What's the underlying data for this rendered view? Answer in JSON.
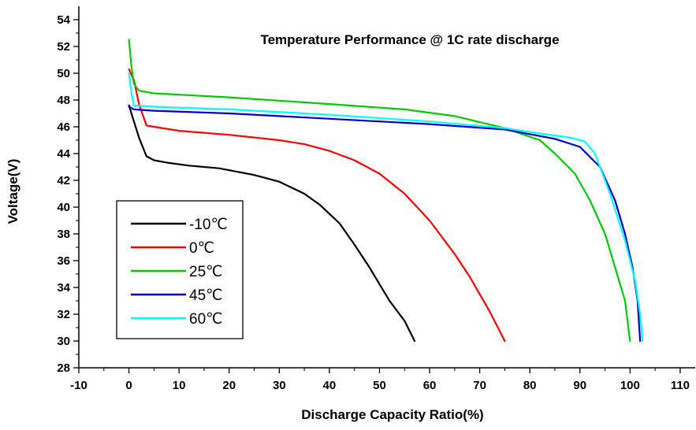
{
  "chart_data": {
    "type": "line",
    "title": "Temperature Performance @ 1C rate discharge",
    "xlabel": "Discharge Capacity Ratio(%)",
    "ylabel": "Voltage(V)",
    "xlim": [
      -10,
      113
    ],
    "ylim": [
      28,
      55
    ],
    "x_ticks": [
      -10,
      0,
      10,
      20,
      30,
      40,
      50,
      60,
      70,
      80,
      90,
      100,
      110
    ],
    "y_ticks": [
      28,
      30,
      32,
      34,
      36,
      38,
      40,
      42,
      44,
      46,
      48,
      50,
      52,
      54
    ],
    "x_tick_labels": [
      "-10",
      "0",
      "10",
      "20",
      "30",
      "40",
      "50",
      "60",
      "70",
      "80",
      "90",
      "100",
      "110"
    ],
    "y_tick_labels": [
      "28",
      "30",
      "32",
      "34",
      "36",
      "38",
      "40",
      "42",
      "44",
      "46",
      "48",
      "50",
      "52",
      "54"
    ],
    "grid": false,
    "legend_position": "bottom-left",
    "series": [
      {
        "name": "-10℃",
        "color": "#000000",
        "points": [
          [
            0,
            47.6
          ],
          [
            1,
            46.4
          ],
          [
            2,
            45.2
          ],
          [
            3.5,
            43.8
          ],
          [
            5,
            43.5
          ],
          [
            8,
            43.3
          ],
          [
            12,
            43.1
          ],
          [
            18,
            42.9
          ],
          [
            25,
            42.4
          ],
          [
            30,
            41.9
          ],
          [
            35,
            41.0
          ],
          [
            38,
            40.2
          ],
          [
            42,
            38.8
          ],
          [
            45,
            37.2
          ],
          [
            48,
            35.5
          ],
          [
            52,
            33.0
          ],
          [
            55,
            31.5
          ],
          [
            57,
            30.0
          ]
        ]
      },
      {
        "name": "0℃",
        "color": "#ff0000",
        "points": [
          [
            0,
            50.3
          ],
          [
            1,
            49.5
          ],
          [
            2,
            47.7
          ],
          [
            3.5,
            46.1
          ],
          [
            5,
            46.0
          ],
          [
            10,
            45.7
          ],
          [
            20,
            45.4
          ],
          [
            30,
            45.0
          ],
          [
            35,
            44.7
          ],
          [
            40,
            44.2
          ],
          [
            45,
            43.5
          ],
          [
            50,
            42.5
          ],
          [
            55,
            41.0
          ],
          [
            60,
            39.0
          ],
          [
            65,
            36.5
          ],
          [
            68,
            34.8
          ],
          [
            72,
            32.2
          ],
          [
            75,
            30.0
          ]
        ]
      },
      {
        "name": "25℃",
        "color": "#00cc00",
        "points": [
          [
            0,
            52.5
          ],
          [
            0.5,
            50.5
          ],
          [
            1,
            49.2
          ],
          [
            2,
            48.7
          ],
          [
            5,
            48.5
          ],
          [
            20,
            48.2
          ],
          [
            40,
            47.7
          ],
          [
            55,
            47.3
          ],
          [
            65,
            46.8
          ],
          [
            75,
            45.9
          ],
          [
            82,
            45.0
          ],
          [
            85,
            44.0
          ],
          [
            89,
            42.5
          ],
          [
            92,
            40.5
          ],
          [
            95,
            38.0
          ],
          [
            97,
            35.5
          ],
          [
            99,
            33.0
          ],
          [
            100,
            30.0
          ]
        ]
      },
      {
        "name": "45℃",
        "color": "#0000cc",
        "points": [
          [
            0,
            47.5
          ],
          [
            1,
            47.3
          ],
          [
            5,
            47.2
          ],
          [
            20,
            47.0
          ],
          [
            40,
            46.6
          ],
          [
            60,
            46.2
          ],
          [
            75,
            45.8
          ],
          [
            85,
            45.1
          ],
          [
            90,
            44.5
          ],
          [
            94,
            43.0
          ],
          [
            97,
            40.5
          ],
          [
            99,
            38.0
          ],
          [
            100.5,
            35.5
          ],
          [
            101.5,
            33.0
          ],
          [
            102,
            30.0
          ]
        ]
      },
      {
        "name": "60℃",
        "color": "#00ffff",
        "points": [
          [
            0,
            50.0
          ],
          [
            0.5,
            48.5
          ],
          [
            1,
            47.6
          ],
          [
            5,
            47.5
          ],
          [
            20,
            47.3
          ],
          [
            40,
            46.9
          ],
          [
            60,
            46.4
          ],
          [
            75,
            45.9
          ],
          [
            82,
            45.5
          ],
          [
            88,
            45.2
          ],
          [
            91,
            44.9
          ],
          [
            93,
            44.0
          ],
          [
            96,
            41.0
          ],
          [
            99,
            37.5
          ],
          [
            101,
            34.5
          ],
          [
            102,
            32.0
          ],
          [
            102.5,
            30.0
          ]
        ]
      }
    ]
  }
}
